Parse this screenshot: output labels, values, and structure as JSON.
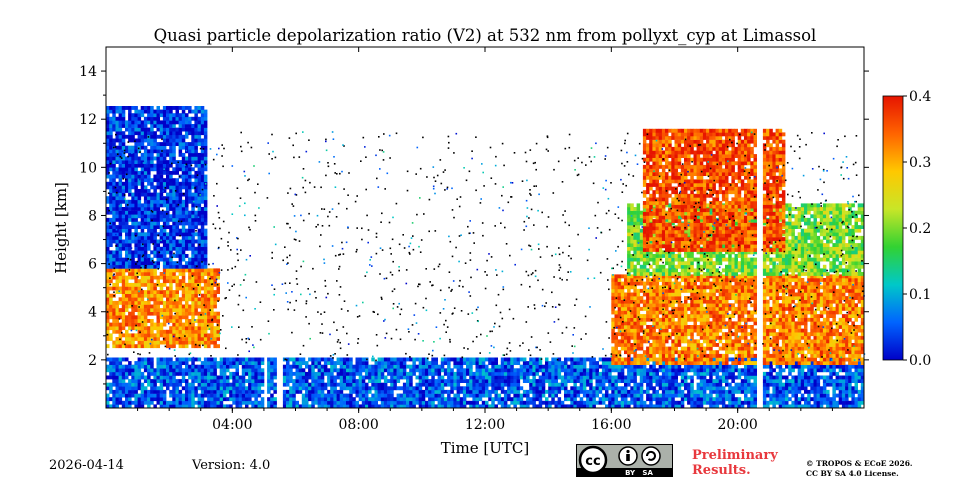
{
  "chart_data": {
    "type": "heatmap",
    "title": "Quasi particle depolarization ratio (V2) at 532 nm from pollyxt_cyp at Limassol",
    "xlabel": "Time [UTC]",
    "ylabel": "Height [km]",
    "xlim": [
      0,
      24
    ],
    "ylim": [
      0,
      15
    ],
    "x_ticks": [
      {
        "value": 4,
        "label": "04:00"
      },
      {
        "value": 8,
        "label": "08:00"
      },
      {
        "value": 12,
        "label": "12:00"
      },
      {
        "value": 16,
        "label": "16:00"
      },
      {
        "value": 20,
        "label": "20:00"
      }
    ],
    "y_ticks": [
      {
        "value": 2,
        "label": "2"
      },
      {
        "value": 4,
        "label": "4"
      },
      {
        "value": 6,
        "label": "6"
      },
      {
        "value": 8,
        "label": "8"
      },
      {
        "value": 10,
        "label": "10"
      },
      {
        "value": 12,
        "label": "12"
      },
      {
        "value": 14,
        "label": "14"
      }
    ],
    "colorbar": {
      "range": [
        0.0,
        0.4
      ],
      "ticks": [
        {
          "value": 0.0,
          "label": "0.0"
        },
        {
          "value": 0.1,
          "label": "0.1"
        },
        {
          "value": 0.2,
          "label": "0.2"
        },
        {
          "value": 0.3,
          "label": "0.3"
        },
        {
          "value": 0.4,
          "label": "0.4"
        }
      ],
      "colormap": [
        "#0000c8",
        "#0064ff",
        "#00c8c8",
        "#32d232",
        "#c8e628",
        "#ffc800",
        "#ff6400",
        "#e61400"
      ]
    },
    "data_gaps_hours": [
      [
        4.9,
        5.05
      ],
      [
        5.35,
        5.55
      ],
      [
        20.55,
        20.75
      ]
    ],
    "layers": [
      {
        "name": "near-surface layer",
        "t_start": 0,
        "t_end": 24,
        "h_bottom": 0.0,
        "h_top": 2.0,
        "value": 0.05
      },
      {
        "name": "dust layer morning",
        "t_start": 0,
        "t_end": 3.6,
        "h_bottom": 2.5,
        "h_top": 5.8,
        "value": 0.32
      },
      {
        "name": "noisy upper layer morning",
        "t_start": 0,
        "t_end": 3.2,
        "h_bottom": 5.8,
        "h_top": 12.5,
        "value": 0.03
      },
      {
        "name": "dust layer evening",
        "t_start": 16.0,
        "t_end": 24,
        "h_bottom": 1.8,
        "h_top": 5.5,
        "value": 0.33
      },
      {
        "name": "mixed layer evening",
        "t_start": 16.5,
        "t_end": 24,
        "h_bottom": 5.5,
        "h_top": 8.5,
        "value": 0.2
      },
      {
        "name": "cirrus evening",
        "t_start": 17.0,
        "t_end": 21.5,
        "h_bottom": 6.5,
        "h_top": 11.5,
        "value": 0.36
      }
    ]
  },
  "footer": {
    "date": "2026-04-14",
    "version": "Version: 4.0",
    "preliminary_line1": "Preliminary",
    "preliminary_line2": "Results.",
    "copyright_line1": "© TROPOS & ECoE 2026.",
    "copyright_line2": "CC BY SA 4.0 License.",
    "license_badge_text": "BY   SA"
  }
}
